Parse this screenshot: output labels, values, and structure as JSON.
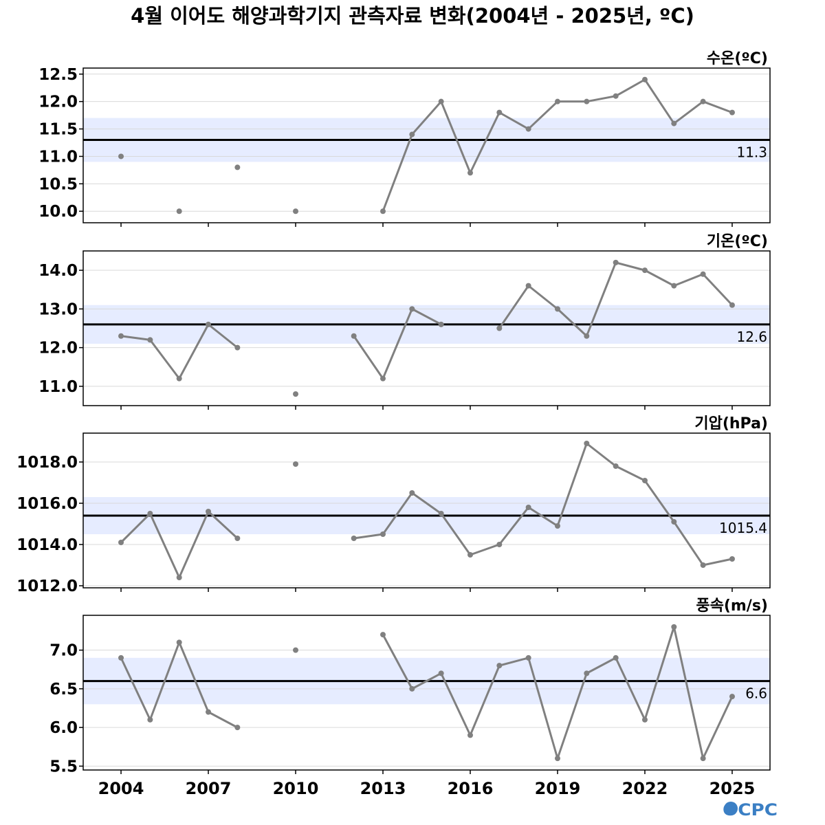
{
  "title": "4월 이어도 해양과학기지 관측자료 변화(2004년 - 2025년, ºC)",
  "logo_text": "OCPC",
  "colors": {
    "series_line": "#808080",
    "mean_line": "#000000",
    "band_fill": "#e6ecff",
    "grid": "#d9d9d9",
    "logo": "#3b7fc4"
  },
  "chart_data": [
    {
      "type": "line",
      "title": "수온(ºC)",
      "x_ticks": [
        2004,
        2007,
        2010,
        2013,
        2016,
        2019,
        2022,
        2025
      ],
      "xlim": [
        2002.7,
        2026.3
      ],
      "ylim": [
        9.79,
        12.61
      ],
      "y_ticks": [
        10.0,
        10.5,
        11.0,
        11.5,
        12.0,
        12.5
      ],
      "y_tick_labels": [
        "10.0",
        "10.5",
        "11.0",
        "11.5",
        "12.0",
        "12.5"
      ],
      "grid": true,
      "mean": 11.3,
      "mean_label": "11.3",
      "band": [
        10.9,
        11.7
      ],
      "x": [
        2004,
        2005,
        2006,
        2007,
        2008,
        2009,
        2010,
        2011,
        2012,
        2013,
        2014,
        2015,
        2016,
        2017,
        2018,
        2019,
        2020,
        2021,
        2022,
        2023,
        2024,
        2025
      ],
      "y": [
        11.0,
        null,
        10.0,
        null,
        10.8,
        null,
        10.0,
        null,
        null,
        10.0,
        11.4,
        12.0,
        10.7,
        11.8,
        11.5,
        12.0,
        12.0,
        12.1,
        12.4,
        11.6,
        12.0,
        11.8
      ]
    },
    {
      "type": "line",
      "title": "기온(ºC)",
      "x_ticks": [
        2004,
        2007,
        2010,
        2013,
        2016,
        2019,
        2022,
        2025
      ],
      "xlim": [
        2002.7,
        2026.3
      ],
      "ylim": [
        10.5,
        14.5
      ],
      "y_ticks": [
        11.0,
        12.0,
        13.0,
        14.0
      ],
      "y_tick_labels": [
        "11.0",
        "12.0",
        "13.0",
        "14.0"
      ],
      "grid": true,
      "mean": 12.6,
      "mean_label": "12.6",
      "band": [
        12.1,
        13.1
      ],
      "x": [
        2004,
        2005,
        2006,
        2007,
        2008,
        2009,
        2010,
        2011,
        2012,
        2013,
        2014,
        2015,
        2016,
        2017,
        2018,
        2019,
        2020,
        2021,
        2022,
        2023,
        2024,
        2025
      ],
      "y": [
        12.3,
        12.2,
        11.2,
        12.6,
        12.0,
        null,
        10.8,
        null,
        12.3,
        11.2,
        13.0,
        12.6,
        null,
        12.5,
        13.6,
        13.0,
        12.3,
        14.2,
        14.0,
        13.6,
        13.9,
        13.1
      ]
    },
    {
      "type": "line",
      "title": "기압(hPa)",
      "x_ticks": [
        2004,
        2007,
        2010,
        2013,
        2016,
        2019,
        2022,
        2025
      ],
      "xlim": [
        2002.7,
        2026.3
      ],
      "ylim": [
        1011.9,
        1019.4
      ],
      "y_ticks": [
        1012.0,
        1014.0,
        1016.0,
        1018.0
      ],
      "y_tick_labels": [
        "1012.0",
        "1014.0",
        "1016.0",
        "1018.0"
      ],
      "grid": true,
      "mean": 1015.4,
      "mean_label": "1015.4",
      "band": [
        1014.5,
        1016.3
      ],
      "x": [
        2004,
        2005,
        2006,
        2007,
        2008,
        2009,
        2010,
        2011,
        2012,
        2013,
        2014,
        2015,
        2016,
        2017,
        2018,
        2019,
        2020,
        2021,
        2022,
        2023,
        2024,
        2025
      ],
      "y": [
        1014.1,
        1015.5,
        1012.4,
        1015.6,
        1014.3,
        null,
        1017.9,
        null,
        1014.3,
        1014.5,
        1016.5,
        1015.5,
        1013.5,
        1014.0,
        1015.8,
        1014.9,
        1018.9,
        1017.8,
        1017.1,
        1015.1,
        1013.0,
        1013.3
      ]
    },
    {
      "type": "line",
      "title": "풍속(m/s)",
      "x_ticks": [
        2004,
        2007,
        2010,
        2013,
        2016,
        2019,
        2022,
        2025
      ],
      "xlim": [
        2002.7,
        2026.3
      ],
      "ylim": [
        5.45,
        7.45
      ],
      "y_ticks": [
        5.5,
        6.0,
        6.5,
        7.0
      ],
      "y_tick_labels": [
        "5.5",
        "6.0",
        "6.5",
        "7.0"
      ],
      "grid": true,
      "mean": 6.6,
      "mean_label": "6.6",
      "band": [
        6.3,
        6.9
      ],
      "x": [
        2004,
        2005,
        2006,
        2007,
        2008,
        2009,
        2010,
        2011,
        2012,
        2013,
        2014,
        2015,
        2016,
        2017,
        2018,
        2019,
        2020,
        2021,
        2022,
        2023,
        2024,
        2025
      ],
      "y": [
        6.9,
        6.1,
        7.1,
        6.2,
        6.0,
        null,
        7.0,
        null,
        null,
        7.2,
        6.5,
        6.7,
        5.9,
        6.8,
        6.9,
        5.6,
        6.7,
        6.9,
        6.1,
        7.3,
        5.6,
        6.4
      ]
    }
  ]
}
